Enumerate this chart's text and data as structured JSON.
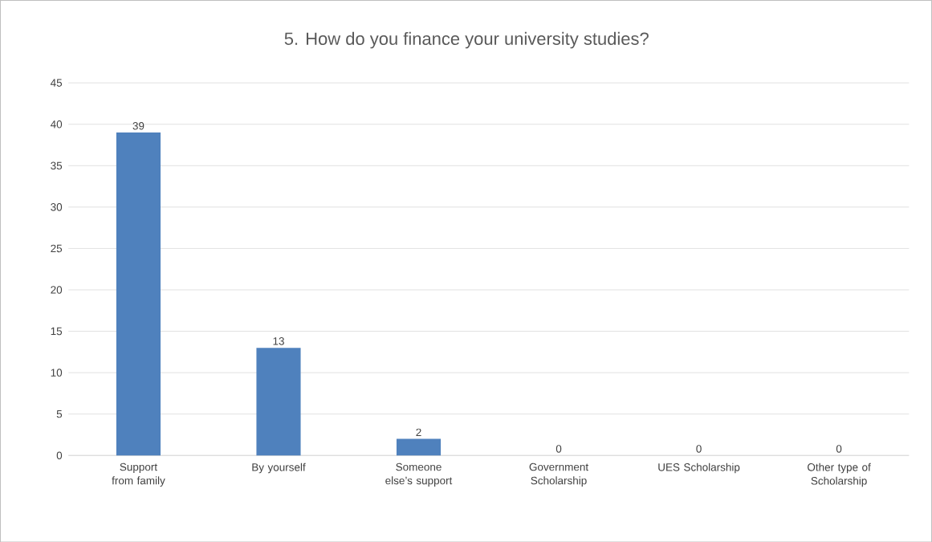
{
  "chart_data": {
    "type": "bar",
    "title": "5. How do you finance your university studies?",
    "categories": [
      "Support from family",
      "By yourself",
      "Someone else’s support",
      "Government Scholarship",
      "UES Scholarship",
      "Other type of Scholarship"
    ],
    "values": [
      39,
      13,
      2,
      0,
      0,
      0
    ],
    "color": "#4f81bd",
    "ylim": [
      0,
      45
    ],
    "yticks": [
      0,
      5,
      10,
      15,
      20,
      25,
      30,
      35,
      40,
      45
    ],
    "grid": "y",
    "data_labels": true
  }
}
